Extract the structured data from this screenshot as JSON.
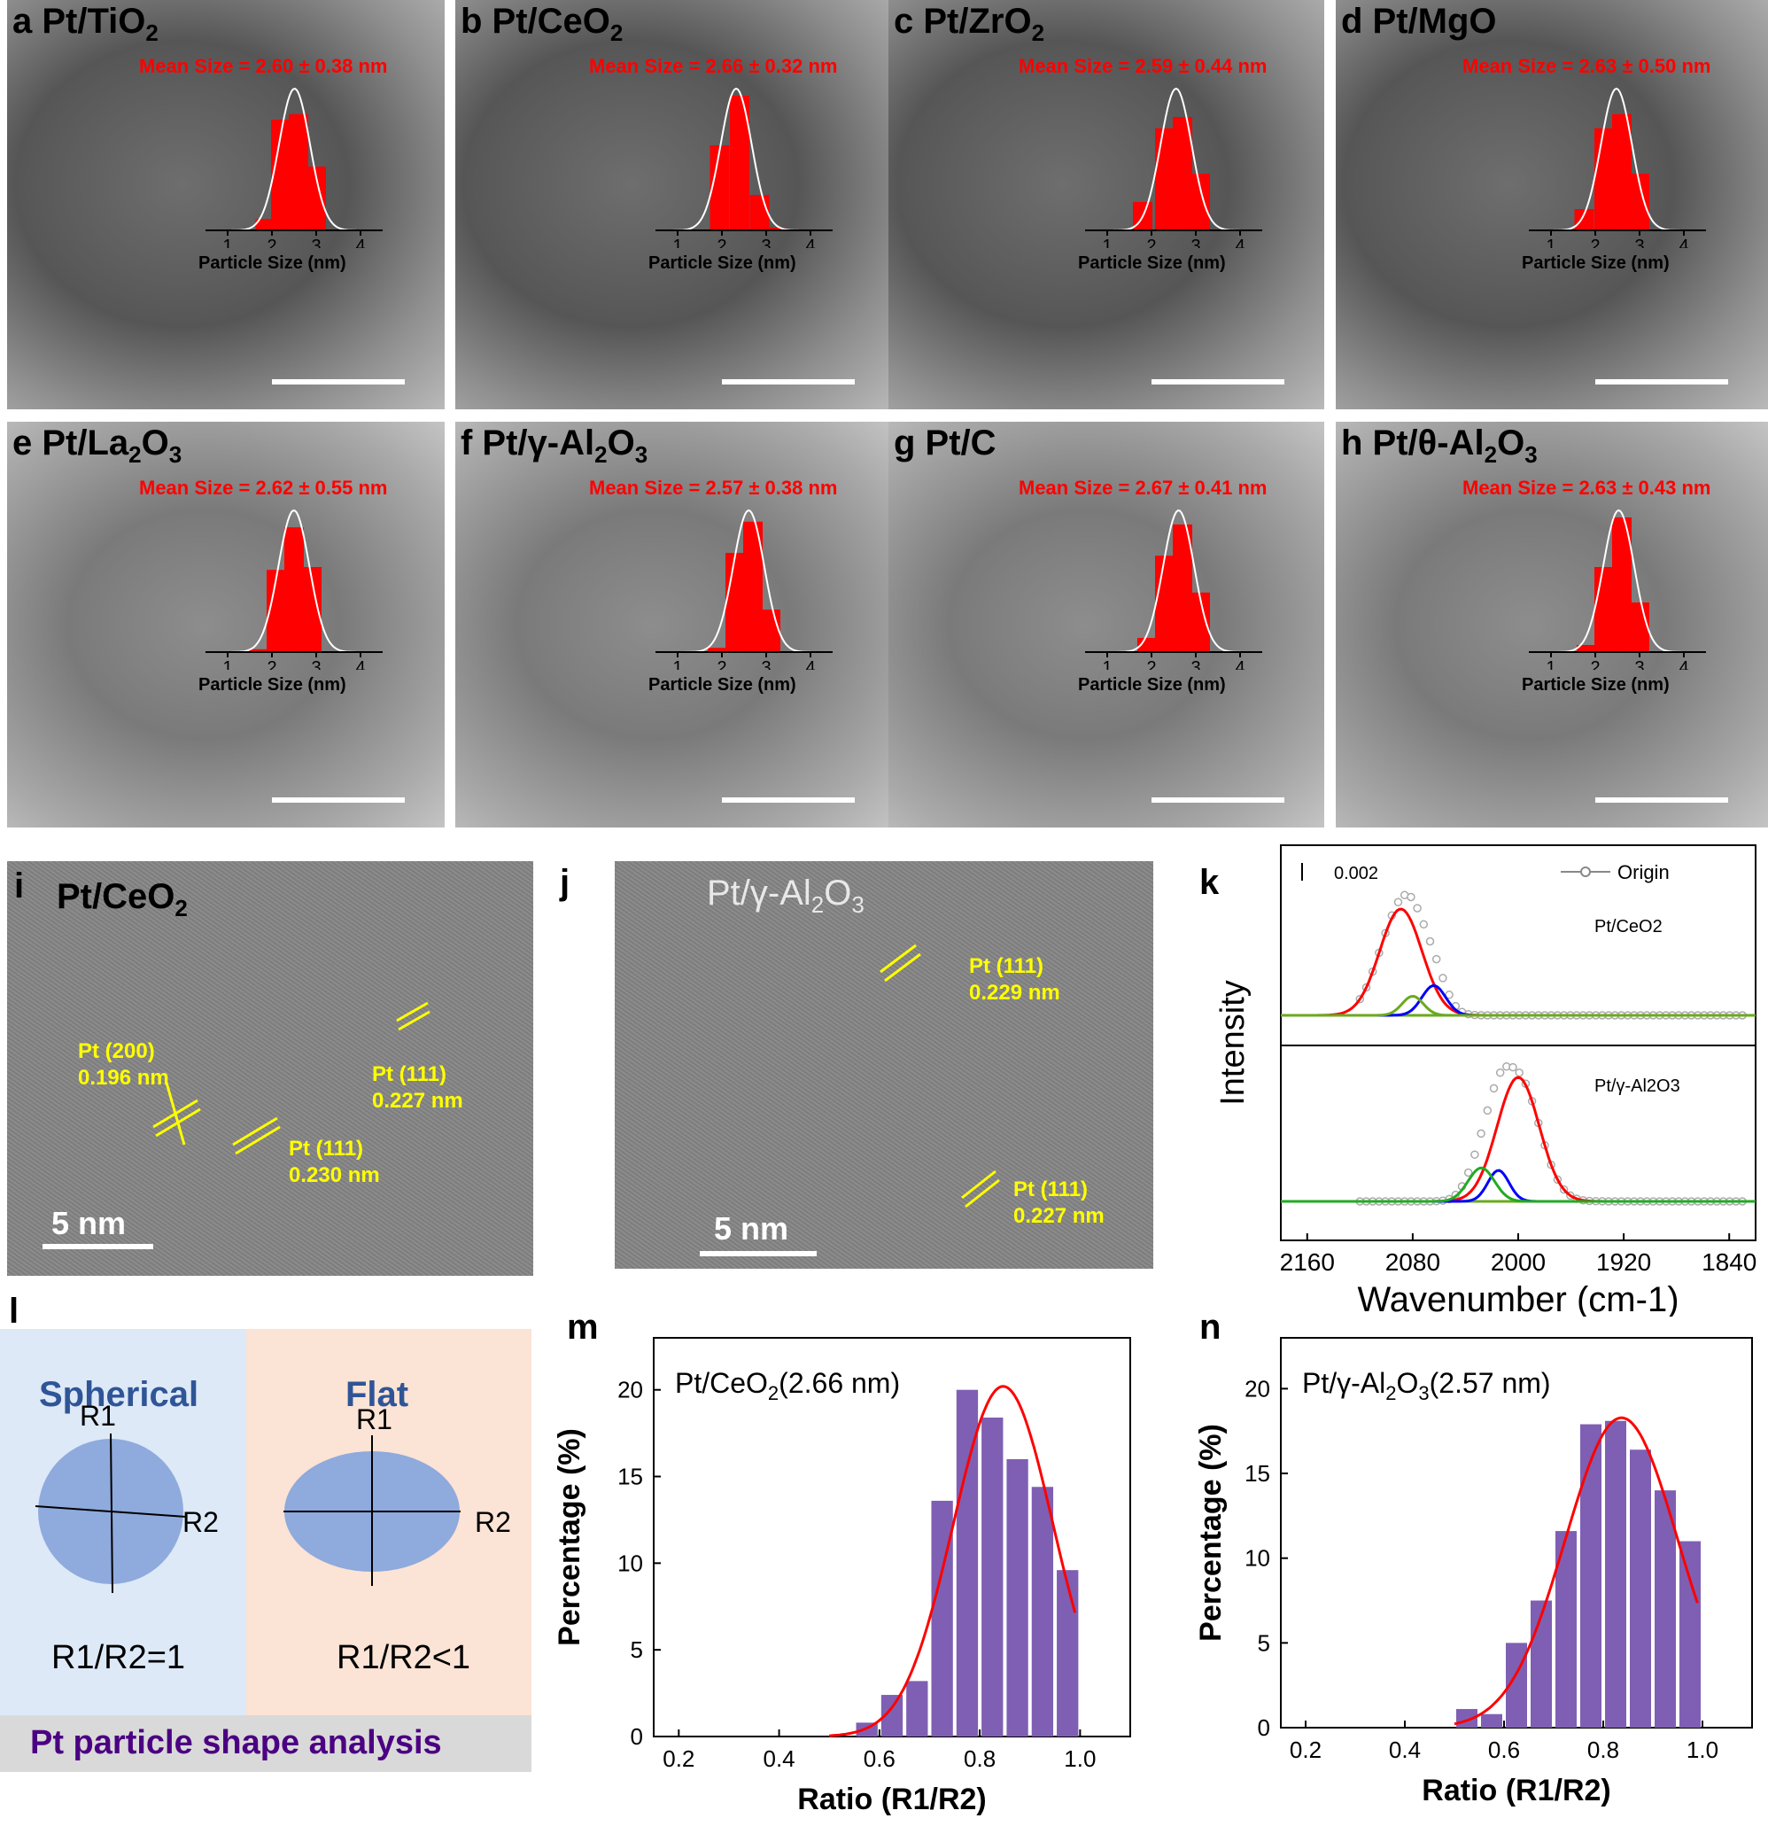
{
  "tem_panels": [
    {
      "letter": "a",
      "material": "Pt/TiO",
      "sub": "2",
      "mean": "Mean Size = 2.60 ± 0.38 nm"
    },
    {
      "letter": "b",
      "material": "Pt/CeO",
      "sub": "2",
      "mean": "Mean Size = 2.66 ± 0.32 nm"
    },
    {
      "letter": "c",
      "material": "Pt/ZrO",
      "sub": "2",
      "mean": "Mean Size = 2.59 ± 0.44 nm"
    },
    {
      "letter": "d",
      "material": "Pt/MgO",
      "sub": "",
      "mean": "Mean Size = 2.63 ± 0.50 nm"
    },
    {
      "letter": "e",
      "material": "Pt/La",
      "sub": "2",
      "material2": "O",
      "sub2": "3",
      "mean": "Mean Size = 2.62 ± 0.55 nm"
    },
    {
      "letter": "f",
      "material": "Pt/γ-Al",
      "sub": "2",
      "material2": "O",
      "sub2": "3",
      "mean": "Mean Size = 2.57 ± 0.38 nm"
    },
    {
      "letter": "g",
      "material": "Pt/C",
      "sub": "",
      "mean": "Mean Size = 2.67 ± 0.41 nm"
    },
    {
      "letter": "h",
      "material": "Pt/θ-Al",
      "sub": "2",
      "material2": "O",
      "sub2": "3",
      "mean": "Mean Size = 2.63 ± 0.43 nm"
    }
  ],
  "hist_xlabel": "Particle Size (nm)",
  "hist_ticks": [
    "1",
    "2",
    "3",
    "4"
  ],
  "hrtem": {
    "i_label": "i",
    "i_material": "Pt/CeO",
    "i_sub": "2",
    "i_ann1": "Pt (200)\n0.196 nm",
    "i_ann2": "Pt (111)\n0.230 nm",
    "i_ann3": "Pt (111)\n0.227 nm",
    "j_label": "j",
    "j_material": "Pt/γ-Al",
    "j_sub": "2",
    "j_material2": "O",
    "j_sub2": "3",
    "j_ann1": "Pt (111)\n0.229 nm",
    "j_ann2": "Pt (111)\n0.227 nm",
    "scale": "5 nm"
  },
  "schematic": {
    "letter": "l",
    "spherical_title": "Spherical",
    "flat_title": "Flat",
    "r1": "R1",
    "r2": "R2",
    "spherical_ratio": "R1/R2=1",
    "flat_ratio": "R1/R2<1",
    "footer": "Pt particle shape analysis",
    "colors": {
      "left_bg": "#dde9f7",
      "right_bg": "#fbe3d5",
      "shape": "#8faadc",
      "title": "#2f5597",
      "footer_text": "#4b0082",
      "footer_bg": "#d9d9d9"
    }
  },
  "chart_data": [
    {
      "panel": "k",
      "type": "line",
      "xlabel": "Wavenumber (cm-1)",
      "ylabel": "Intensity",
      "xticks": [
        "2160",
        "2080",
        "2000",
        "1920",
        "1840"
      ],
      "scalebar_label": "0.002",
      "legend": "Origin",
      "subplots": [
        {
          "label": "Pt/CeO2",
          "peaks": [
            {
              "center": 2089,
              "color": "#ff0000"
            },
            {
              "center": 2064,
              "color": "#0000ff"
            },
            {
              "center": 2080,
              "color": "#6aaa1e"
            }
          ]
        },
        {
          "label": "Pt/γ-Al2O3",
          "peaks": [
            {
              "center": 2000,
              "color": "#ff0000"
            },
            {
              "center": 2015,
              "color": "#0000ff"
            },
            {
              "center": 2028,
              "color": "#22aa22"
            }
          ]
        }
      ]
    },
    {
      "panel": "m",
      "type": "bar",
      "title": "Pt/CeO2(2.66 nm)",
      "xlabel": "Ratio (R1/R2)",
      "ylabel": "Percentage (%)",
      "x": [
        0.575,
        0.625,
        0.675,
        0.725,
        0.775,
        0.825,
        0.875,
        0.925,
        0.975
      ],
      "values": [
        0.8,
        2.4,
        3.2,
        13.6,
        20.0,
        18.4,
        16.0,
        14.4,
        9.6
      ],
      "xlim": [
        0.15,
        1.1
      ],
      "ylim": [
        0,
        23
      ],
      "xticks": [
        "0.2",
        "0.4",
        "0.6",
        "0.8",
        "1.0"
      ],
      "yticks": [
        "0",
        "5",
        "10",
        "15",
        "20"
      ],
      "bar_color": "#7f5fb3",
      "fit_color": "#ff0000"
    },
    {
      "panel": "n",
      "type": "bar",
      "title": "Pt/γ-Al2O3(2.57 nm)",
      "xlabel": "Ratio (R1/R2)",
      "ylabel": "Percentage (%)",
      "x": [
        0.525,
        0.575,
        0.625,
        0.675,
        0.725,
        0.775,
        0.825,
        0.875,
        0.925,
        0.975
      ],
      "values": [
        1.1,
        0.8,
        5.0,
        7.5,
        11.6,
        17.9,
        18.1,
        16.4,
        14.0,
        11.0
      ],
      "xlim": [
        0.15,
        1.1
      ],
      "ylim": [
        0,
        23
      ],
      "xticks": [
        "0.2",
        "0.4",
        "0.6",
        "0.8",
        "1.0"
      ],
      "yticks": [
        "0",
        "5",
        "10",
        "15",
        "20"
      ],
      "bar_color": "#7f5fb3",
      "fit_color": "#ff0000"
    }
  ]
}
